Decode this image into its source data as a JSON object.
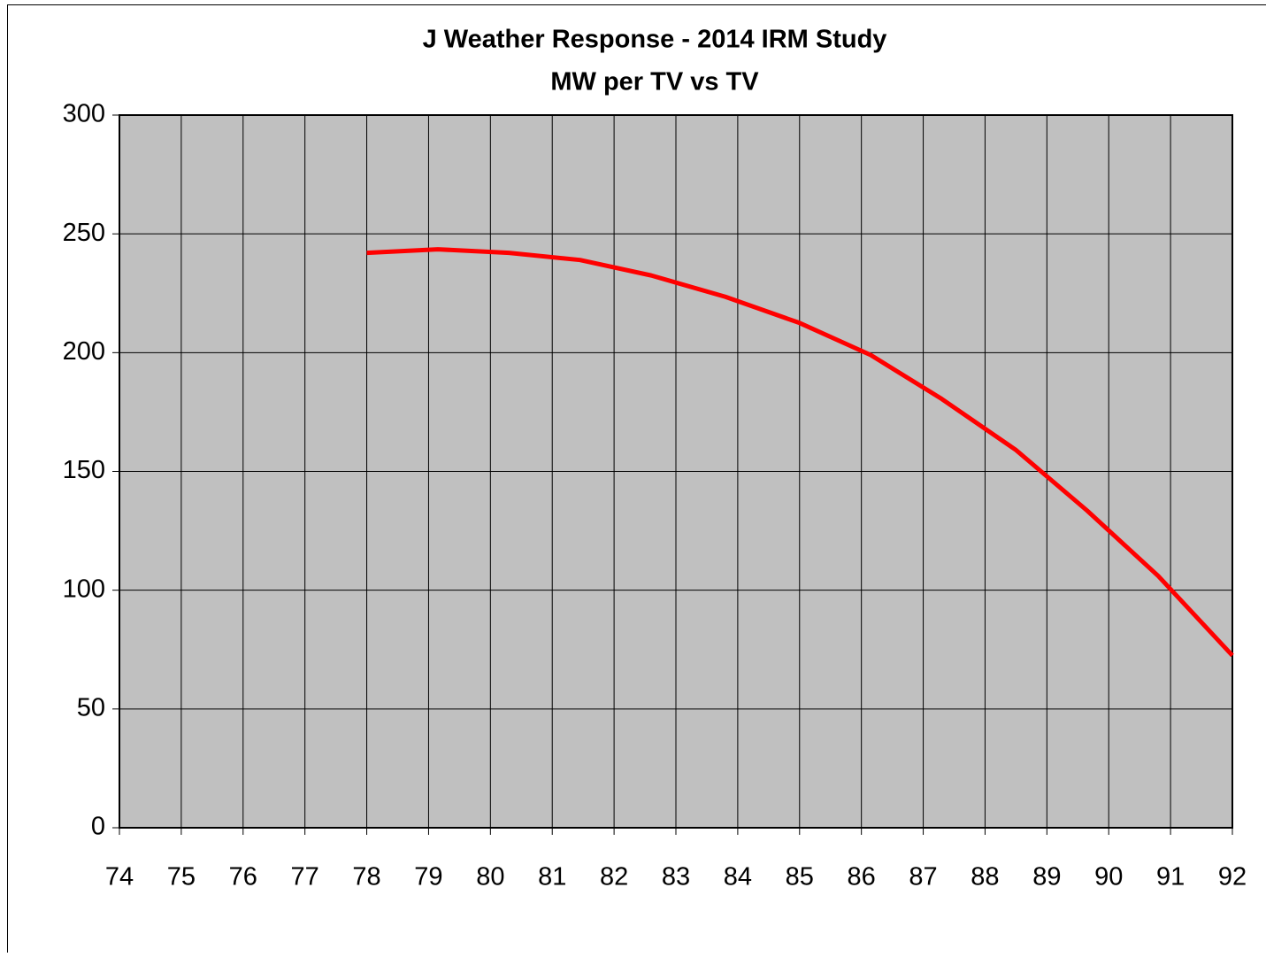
{
  "chart_data": {
    "type": "line",
    "title": "J  Weather Response - 2014 IRM Study",
    "subtitle": "MW per TV vs TV",
    "x": [
      78,
      79.15,
      80.3,
      81.45,
      82.6,
      83.8,
      85,
      86.15,
      87.3,
      88.5,
      89.65,
      90.8,
      92
    ],
    "series": [
      {
        "name": "MW per TV",
        "color": "#ff0000",
        "values": [
          242,
          243.5,
          242,
          239,
          232.5,
          223.5,
          212.5,
          199,
          180.5,
          159,
          133.5,
          106,
          72.5
        ]
      }
    ],
    "xlim": [
      74,
      92
    ],
    "xticks": [
      74,
      75,
      76,
      77,
      78,
      79,
      80,
      81,
      82,
      83,
      84,
      85,
      86,
      87,
      88,
      89,
      90,
      91,
      92
    ],
    "ylim": [
      0,
      300
    ],
    "yticks": [
      0,
      50,
      100,
      150,
      200,
      250,
      300
    ],
    "grid": true,
    "plot_background": "#c0c0c0"
  }
}
